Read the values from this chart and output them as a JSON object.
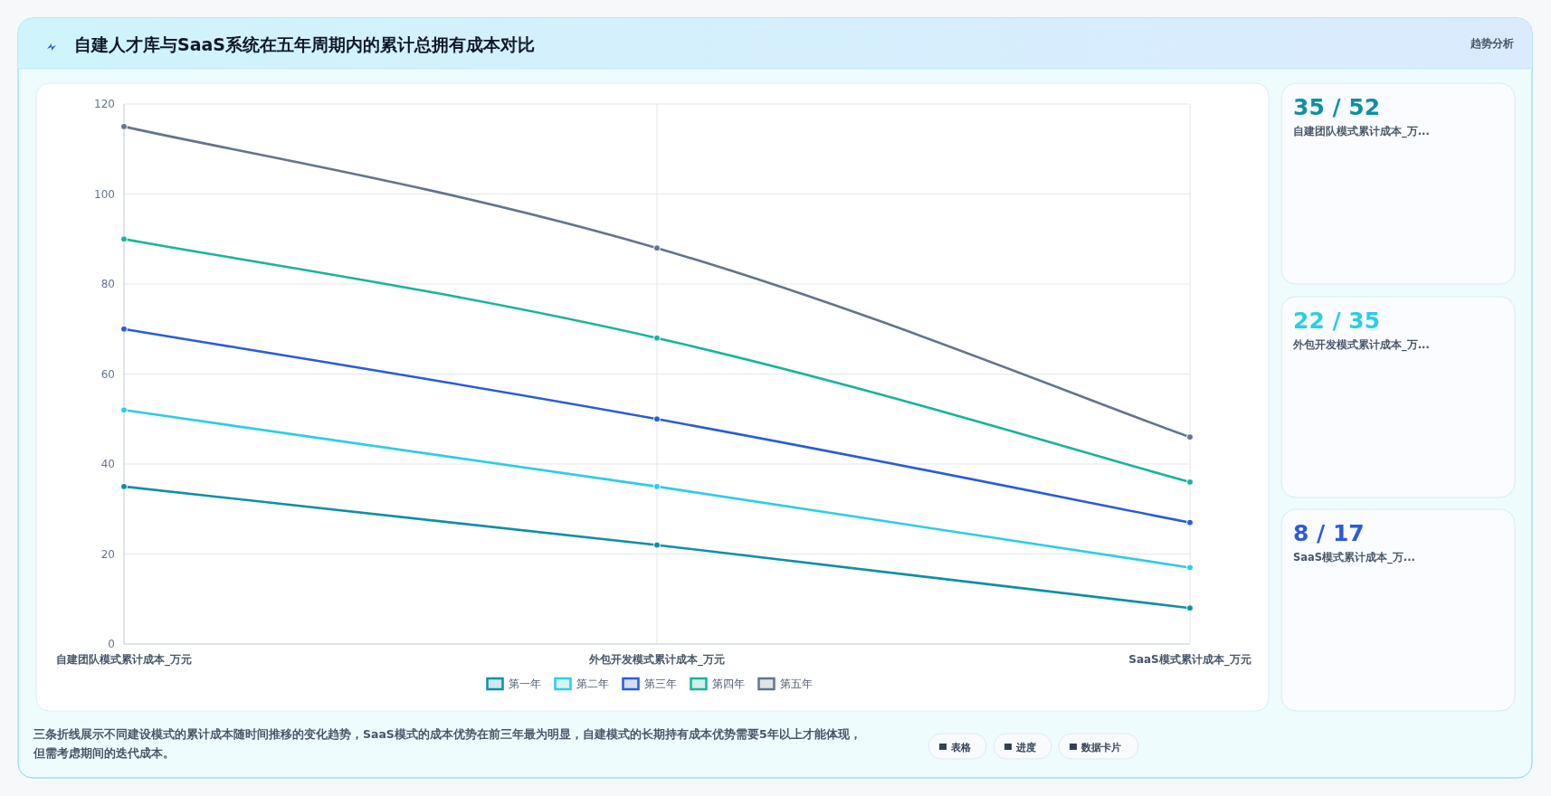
{
  "chart_data": [
    {
      "type": "line",
      "title": "自建人才库与SaaS系统在五年周期内的累计总拥有成本对比",
      "categories": [
        "自建团队模式累计成本_万元",
        "外包开发模式累计成本_万元",
        "SaaS模式累计成本_万元"
      ],
      "series": [
        {
          "name": "第一年",
          "color": "#0e8fa8",
          "values": [
            35,
            22,
            8
          ]
        },
        {
          "name": "第二年",
          "color": "#2ccde6",
          "values": [
            52,
            35,
            17
          ]
        },
        {
          "name": "第三年",
          "color": "#2a5cd9",
          "values": [
            70,
            50,
            27
          ]
        },
        {
          "name": "第四年",
          "color": "#1bb39b",
          "values": [
            90,
            68,
            36
          ]
        },
        {
          "name": "第五年",
          "color": "#64748b",
          "values": [
            115,
            88,
            46
          ]
        }
      ],
      "ylim": [
        0,
        120
      ],
      "yticks": [
        0,
        20,
        40,
        60,
        80,
        100,
        120
      ],
      "grid": true,
      "legend": "bottom",
      "marker": "circle",
      "annotations": [
        "趋势分析",
        "三条折线展示不同建设模式的累计成本随时间推移的变化趋势，SaaS模式的成本优势在前三年最为明显，自建模式的长期持有成本优势需要5年以上才能体现，但需考虑期间的迭代成本。",
        "表格",
        "进度",
        "数据卡片"
      ]
    },
    {
      "type": "other",
      "categories": [
        "自建团队模式累计成本_万...",
        "外包开发模式累计成本_万...",
        "SaaS模式累计成本_万..."
      ],
      "value_labels": [
        "35 / 52",
        "22 / 35",
        "8 / 17"
      ]
    }
  ]
}
